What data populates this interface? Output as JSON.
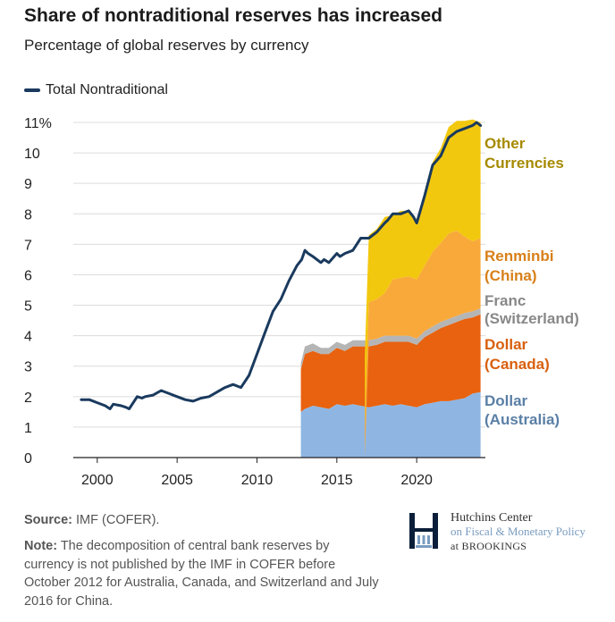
{
  "title": "Share of nontraditional reserves has increased",
  "subtitle": "Percentage of global reserves by currency",
  "legend": {
    "total_label": "Total Nontraditional"
  },
  "colors": {
    "total_line": "#1a3a5e",
    "australia": "#8fb6e3",
    "canada": "#e8620f",
    "switzerland": "#b5b5b5",
    "china": "#f9a93a",
    "other": "#f2c80f",
    "label_australia": "#5a7fa6",
    "label_canada": "#d8600f",
    "label_switzerland": "#888888",
    "label_china": "#d8801a",
    "label_other": "#a68a00"
  },
  "footer": {
    "source_label": "Source:",
    "source_text": " IMF (COFER).",
    "note_label": "Note:",
    "note_text": " The decomposition of central bank reserves by currency is not published by the IMF in COFER before October 2012 for Australia, Canada, and Switzerland and July 2016 for China."
  },
  "logo": {
    "line1": "Hutchins Center",
    "line2": "on Fiscal & Monetary Policy",
    "line3": "at BROOKINGS"
  },
  "chart_data": {
    "type": "area",
    "title": "Share of nontraditional reserves has increased",
    "subtitle": "Percentage of global reserves by currency",
    "xlabel": "",
    "ylabel": "",
    "xlim": [
      1998.5,
      2024.3
    ],
    "ylim": [
      0,
      11
    ],
    "x_ticks": [
      2000,
      2005,
      2010,
      2015,
      2020
    ],
    "y_ticks": [
      0,
      1,
      2,
      3,
      4,
      5,
      6,
      7,
      8,
      9,
      10,
      11
    ],
    "y_tick_labels": [
      "0",
      "1",
      "2",
      "3",
      "4",
      "5",
      "6",
      "7",
      "8",
      "9",
      "10",
      "11%"
    ],
    "grid": "horizontal",
    "legend": "top-left",
    "series": [
      {
        "name": "Total Nontraditional",
        "type": "line",
        "x": [
          1999.0,
          1999.5,
          2000.0,
          2000.5,
          2000.8,
          2001.0,
          2001.5,
          2001.8,
          2002.0,
          2002.5,
          2002.8,
          2003.0,
          2003.5,
          2004.0,
          2004.5,
          2005.0,
          2005.5,
          2006.0,
          2006.5,
          2007.0,
          2007.5,
          2008.0,
          2008.5,
          2009.0,
          2009.5,
          2010.0,
          2010.5,
          2011.0,
          2011.5,
          2012.0,
          2012.5,
          2012.8,
          2013.0,
          2013.2,
          2013.5,
          2014.0,
          2014.2,
          2014.5,
          2015.0,
          2015.2,
          2015.5,
          2016.0,
          2016.5,
          2016.8,
          2017.0,
          2017.5,
          2018.0,
          2018.2,
          2018.5,
          2019.0,
          2019.5,
          2019.8,
          2020.0,
          2020.5,
          2021.0,
          2021.5,
          2022.0,
          2022.5,
          2023.0,
          2023.5,
          2023.75,
          2024.0
        ],
        "values": [
          1.9,
          1.9,
          1.8,
          1.7,
          1.6,
          1.75,
          1.7,
          1.65,
          1.6,
          2.0,
          1.95,
          2.0,
          2.05,
          2.2,
          2.1,
          2.0,
          1.9,
          1.85,
          1.95,
          2.0,
          2.15,
          2.3,
          2.4,
          2.3,
          2.7,
          3.4,
          4.1,
          4.8,
          5.2,
          5.8,
          6.3,
          6.5,
          6.8,
          6.7,
          6.6,
          6.4,
          6.5,
          6.4,
          6.7,
          6.6,
          6.7,
          6.8,
          7.2,
          7.2,
          7.2,
          7.4,
          7.7,
          7.8,
          8.0,
          8.0,
          8.1,
          7.9,
          7.7,
          8.6,
          9.6,
          9.9,
          10.5,
          10.7,
          10.8,
          10.9,
          11.0,
          10.9
        ]
      },
      {
        "name": "Dollar (Australia)",
        "type": "stacked-area",
        "x": [
          2012.75,
          2013.0,
          2013.5,
          2014.0,
          2014.5,
          2015.0,
          2015.5,
          2016.0,
          2016.5,
          2017.0,
          2017.5,
          2018.0,
          2018.5,
          2019.0,
          2019.5,
          2020.0,
          2020.5,
          2021.0,
          2021.5,
          2022.0,
          2022.5,
          2023.0,
          2023.5,
          2024.0
        ],
        "values": [
          1.5,
          1.6,
          1.7,
          1.65,
          1.6,
          1.75,
          1.7,
          1.75,
          1.7,
          1.65,
          1.7,
          1.75,
          1.7,
          1.75,
          1.7,
          1.65,
          1.75,
          1.8,
          1.85,
          1.85,
          1.9,
          1.95,
          2.1,
          2.15
        ]
      },
      {
        "name": "Dollar (Canada)",
        "type": "stacked-area",
        "x": [
          2012.75,
          2013.0,
          2013.5,
          2014.0,
          2014.5,
          2015.0,
          2015.5,
          2016.0,
          2016.5,
          2017.0,
          2017.5,
          2018.0,
          2018.5,
          2019.0,
          2019.5,
          2020.0,
          2020.5,
          2021.0,
          2021.5,
          2022.0,
          2022.5,
          2023.0,
          2023.5,
          2024.0
        ],
        "values": [
          1.4,
          1.8,
          1.8,
          1.75,
          1.8,
          1.85,
          1.8,
          1.9,
          1.95,
          2.0,
          2.0,
          2.05,
          2.1,
          2.05,
          2.1,
          2.05,
          2.2,
          2.3,
          2.4,
          2.5,
          2.55,
          2.6,
          2.5,
          2.55
        ]
      },
      {
        "name": "Franc (Switzerland)",
        "type": "stacked-area",
        "x": [
          2012.75,
          2013.0,
          2013.5,
          2014.0,
          2014.5,
          2015.0,
          2015.5,
          2016.0,
          2016.5,
          2017.0,
          2017.5,
          2018.0,
          2018.5,
          2019.0,
          2019.5,
          2020.0,
          2020.5,
          2021.0,
          2021.5,
          2022.0,
          2022.5,
          2023.0,
          2023.5,
          2024.0
        ],
        "values": [
          0.2,
          0.25,
          0.25,
          0.2,
          0.2,
          0.2,
          0.2,
          0.2,
          0.2,
          0.2,
          0.2,
          0.2,
          0.2,
          0.2,
          0.2,
          0.2,
          0.2,
          0.2,
          0.2,
          0.2,
          0.2,
          0.2,
          0.2,
          0.2
        ]
      },
      {
        "name": "Renminbi (China)",
        "type": "stacked-area",
        "x": [
          2016.75,
          2017.0,
          2017.5,
          2018.0,
          2018.5,
          2019.0,
          2019.5,
          2020.0,
          2020.5,
          2021.0,
          2021.5,
          2022.0,
          2022.5,
          2023.0,
          2023.5,
          2024.0
        ],
        "values": [
          1.1,
          1.25,
          1.3,
          1.4,
          1.85,
          1.9,
          1.95,
          1.95,
          2.15,
          2.45,
          2.6,
          2.8,
          2.8,
          2.5,
          2.3,
          2.3
        ]
      },
      {
        "name": "Other Currencies",
        "type": "stacked-area",
        "x": [
          2016.75,
          2017.0,
          2017.5,
          2018.0,
          2018.5,
          2019.0,
          2019.5,
          2020.0,
          2020.5,
          2021.0,
          2021.5,
          2022.0,
          2022.5,
          2023.0,
          2023.5,
          2024.0
        ],
        "values": [
          2.25,
          2.2,
          2.3,
          2.5,
          2.1,
          2.2,
          2.15,
          1.9,
          2.45,
          2.95,
          3.1,
          3.5,
          3.6,
          3.8,
          4.0,
          3.8
        ]
      }
    ],
    "series_labels": [
      {
        "series": "Other Currencies",
        "lines": [
          "Other",
          "Currencies"
        ]
      },
      {
        "series": "Renminbi (China)",
        "lines": [
          "Renminbi",
          "(China)"
        ]
      },
      {
        "series": "Franc (Switzerland)",
        "lines": [
          "Franc",
          "(Switzerland)"
        ]
      },
      {
        "series": "Dollar (Canada)",
        "lines": [
          "Dollar",
          "(Canada)"
        ]
      },
      {
        "series": "Dollar (Australia)",
        "lines": [
          "Dollar",
          "(Australia)"
        ]
      }
    ]
  }
}
